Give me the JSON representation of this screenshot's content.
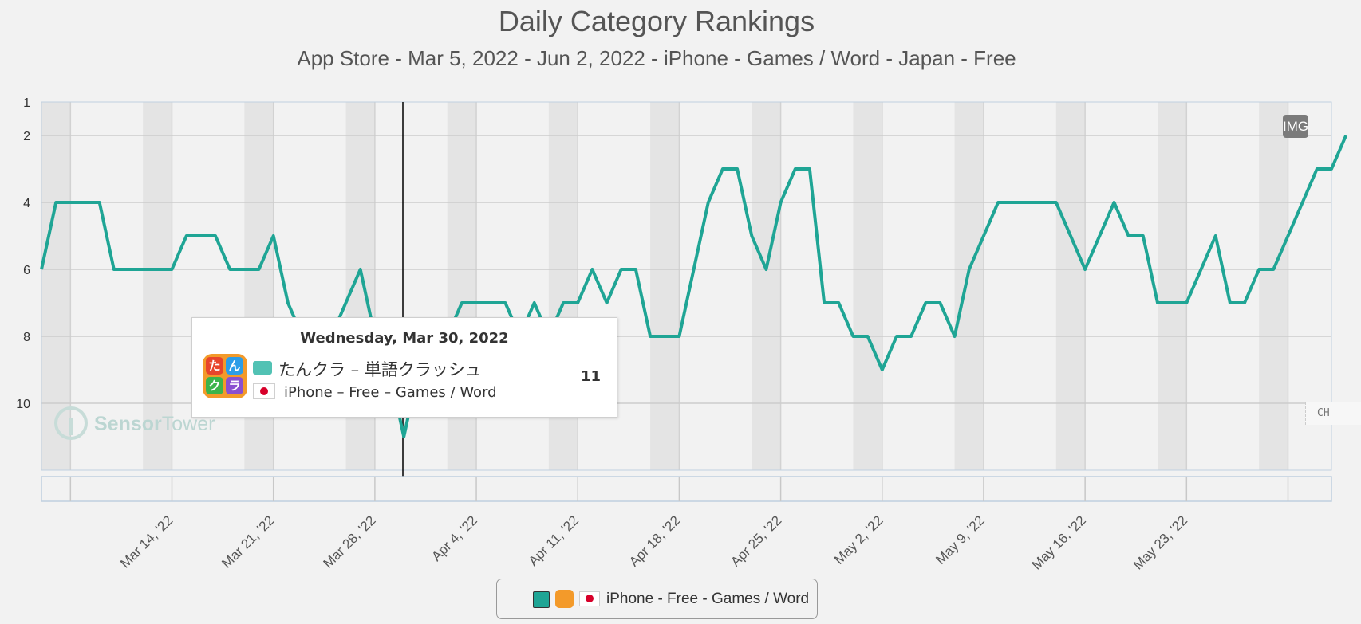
{
  "chart_data": {
    "type": "line",
    "title": "Daily Category Rankings",
    "subtitle": "App Store - Mar 5, 2022 - Jun 2, 2022 - iPhone - Games / Word - Japan - Free",
    "x_range": [
      "2022-03-05",
      "2022-06-02"
    ],
    "x_tick_labels": [
      "Mar 14, '22",
      "Mar 21, '22",
      "Mar 28, '22",
      "Apr 4, '22",
      "Apr 11, '22",
      "Apr 18, '22",
      "Apr 25, '22",
      "May 2, '22",
      "May 9, '22",
      "May 16, '22",
      "May 23, '22"
    ],
    "y_tick_labels": [
      "1",
      "2",
      "4",
      "6",
      "8",
      "10"
    ],
    "y_ticks": [
      1,
      2,
      4,
      6,
      8,
      10
    ],
    "ylim": [
      1,
      12
    ],
    "y_reversed": true,
    "grid": true,
    "weekend_bands": true,
    "series": [
      {
        "name": "iPhone - Free - Games / Word",
        "color": "#1fa595",
        "values": [
          6,
          4,
          4,
          4,
          4,
          6,
          6,
          6,
          6,
          6,
          5,
          5,
          5,
          6,
          6,
          6,
          5,
          7,
          8,
          8,
          8,
          7,
          6,
          8,
          9,
          11,
          9,
          9,
          8,
          7,
          7,
          7,
          7,
          8,
          7,
          8,
          7,
          7,
          6,
          7,
          6,
          6,
          8,
          8,
          8,
          6,
          4,
          3,
          3,
          5,
          6,
          4,
          3,
          3,
          7,
          7,
          8,
          8,
          9,
          8,
          8,
          7,
          7,
          8,
          6,
          5,
          4,
          4,
          4,
          4,
          4,
          5,
          6,
          5,
          4,
          5,
          5,
          7,
          7,
          7,
          6,
          5,
          7,
          7,
          6,
          6,
          5,
          4,
          3,
          3,
          2
        ]
      }
    ],
    "tooltip": {
      "date": "Wednesday, Mar 30, 2022",
      "app_name": "たんクラ – 単語クラッシュ",
      "series_label": "iPhone – Free – Games / Word",
      "value": "11"
    },
    "legend": {
      "position": "bottom-center",
      "label": "iPhone - Free - Games / Word"
    }
  },
  "app_icon_chars": [
    "た",
    "ん",
    "ク",
    "ラ"
  ],
  "img_badge": "IMG",
  "side_control": "CH",
  "watermark": {
    "brand_a": "Sensor",
    "brand_b": "Tower"
  }
}
